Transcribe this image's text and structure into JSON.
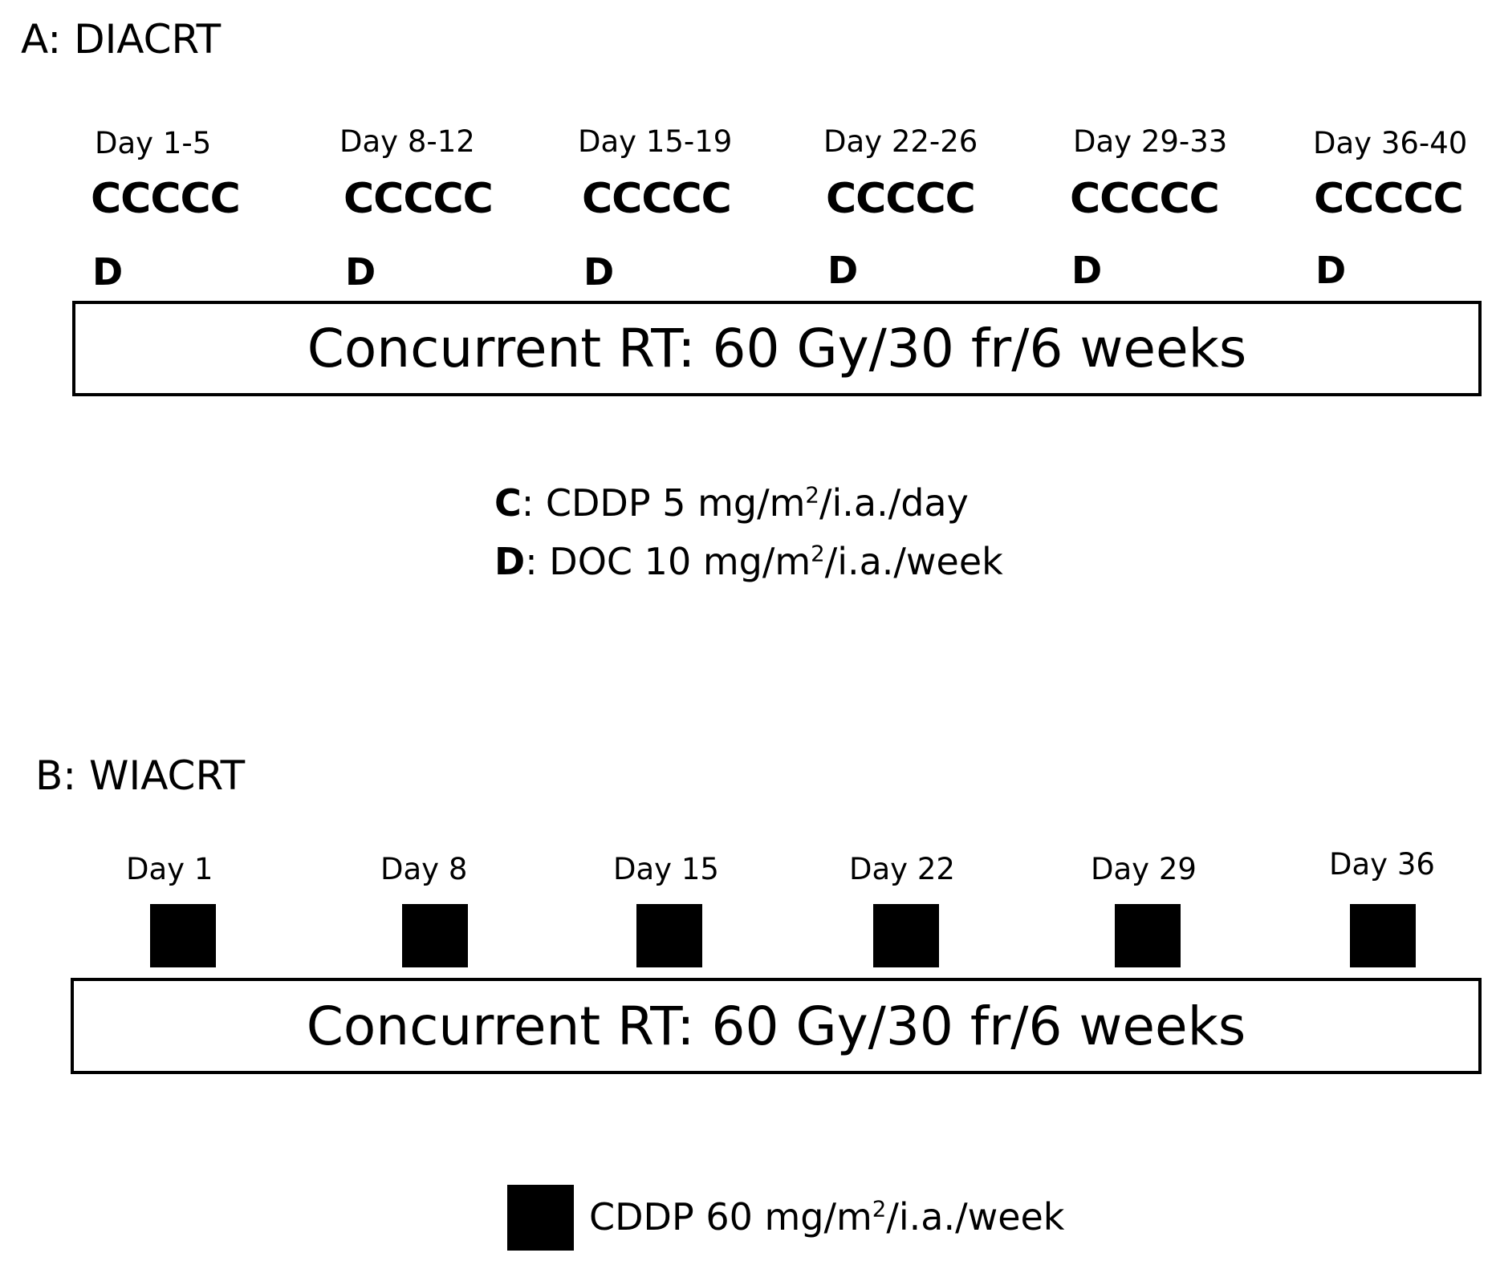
{
  "panel_a": {
    "title": "A: DIACRT",
    "days": [
      {
        "label": "Day 1-5",
        "c": "CCCCC",
        "d": "D"
      },
      {
        "label": "Day 8-12",
        "c": "CCCCC",
        "d": "D"
      },
      {
        "label": "Day 15-19",
        "c": "CCCCC",
        "d": "D"
      },
      {
        "label": "Day 22-26",
        "c": "CCCCC",
        "d": "D"
      },
      {
        "label": "Day 29-33",
        "c": "CCCCC",
        "d": "D"
      },
      {
        "label": "Day 36-40",
        "c": "CCCCC",
        "d": "D"
      }
    ],
    "rt_label": "Concurrent RT: 60 Gy/30 fr/6 weeks",
    "legend": [
      {
        "key": "C",
        "text_pre": ": CDDP 5 mg/m",
        "sup": "2",
        "text_post": "/i.a./day"
      },
      {
        "key": "D",
        "text_pre": ": DOC 10 mg/m",
        "sup": "2",
        "text_post": "/i.a./week"
      }
    ]
  },
  "panel_b": {
    "title": "B: WIACRT",
    "days": [
      "Day 1",
      "Day 8",
      "Day 15",
      "Day 22",
      "Day 29",
      "Day 36"
    ],
    "rt_label": "Concurrent RT: 60 Gy/30 fr/6 weeks",
    "legend": {
      "text_pre": "CDDP 60 mg/m",
      "sup": "2",
      "text_post": "/i.a./week"
    }
  }
}
